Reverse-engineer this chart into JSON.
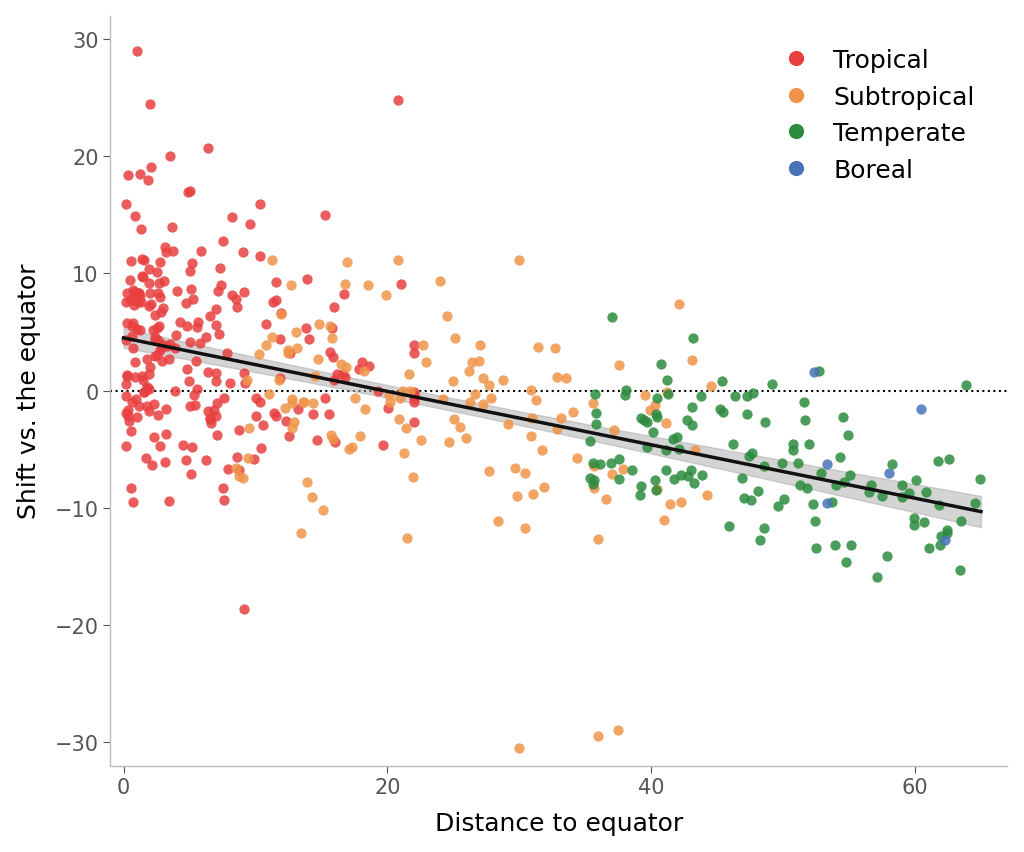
{
  "title": "",
  "xlabel": "Distance to equator",
  "ylabel": "Shift vs. the equator",
  "xlim": [
    -1,
    67
  ],
  "ylim": [
    -32,
    32
  ],
  "xticks": [
    0,
    20,
    40,
    60
  ],
  "yticks": [
    -30,
    -20,
    -10,
    0,
    10,
    20,
    30
  ],
  "categories": [
    "Tropical",
    "Subtropical",
    "Temperate",
    "Boreal"
  ],
  "colors": {
    "Tropical": "#E84040",
    "Subtropical": "#F0944A",
    "Temperate": "#2D8B3E",
    "Boreal": "#4A72B8"
  },
  "regression_color": "#111111",
  "regression_ci_color": "#AAAAAA",
  "regression_slope": -0.228,
  "regression_intercept": 4.5,
  "dotted_line_y": 0,
  "background_color": "#FFFFFF",
  "legend_fontsize": 18,
  "axis_fontsize": 18,
  "tick_fontsize": 15,
  "point_size": 55,
  "point_alpha": 0.85,
  "seed": 42
}
